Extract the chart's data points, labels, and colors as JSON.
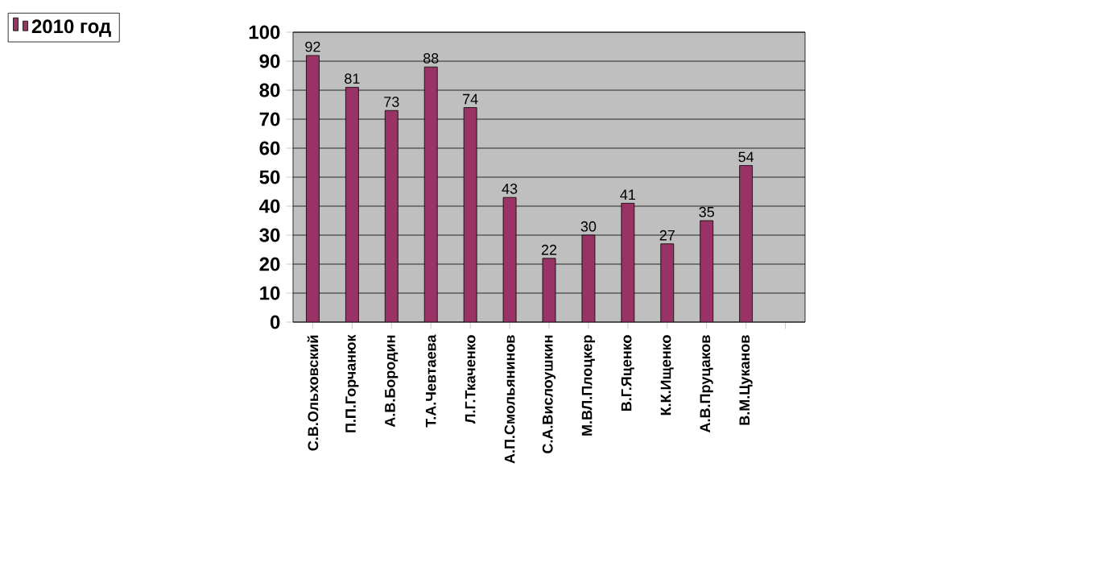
{
  "chart_data": {
    "type": "bar",
    "categories": [
      "С.В.Ольховский",
      "П.П.Горчанюк",
      "А.В.Бородин",
      "Т.А.Чевтаева",
      "Л.Г.Ткаченко",
      "А.П.Смольянинов",
      "С.А.Вислоушкин",
      "М.ВЛ.Плоцкер",
      "В.Г.Яценко",
      "К.К.Ищенко",
      "А.В.Пруцаков",
      "В.М.Цуканов",
      null
    ],
    "series": [
      {
        "name": "2010 год",
        "color": "#993366",
        "values": [
          92,
          81,
          73,
          88,
          74,
          43,
          22,
          30,
          41,
          27,
          35,
          54,
          null
        ]
      }
    ],
    "ylim": [
      0,
      100
    ],
    "yticks": [
      0,
      10,
      20,
      30,
      40,
      50,
      60,
      70,
      80,
      90,
      100
    ],
    "grid": "y",
    "legend": "top left",
    "data_labels": true
  }
}
